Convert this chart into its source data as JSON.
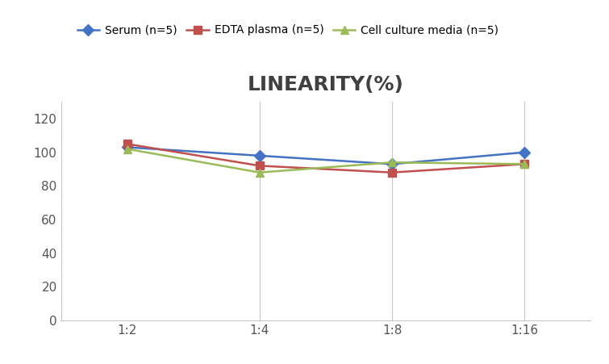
{
  "title": "LINEARITY(%)",
  "title_color": "#404040",
  "x_labels": [
    "1:2",
    "1:4",
    "1:8",
    "1:16"
  ],
  "series": [
    {
      "label": "Serum (n=5)",
      "values": [
        103,
        98,
        93,
        100
      ],
      "color": "#4472C4",
      "marker": "D"
    },
    {
      "label": "EDTA plasma (n=5)",
      "values": [
        105,
        92,
        88,
        93
      ],
      "color": "#C0504D",
      "marker": "s"
    },
    {
      "label": "Cell culture media (n=5)",
      "values": [
        102,
        88,
        94,
        93
      ],
      "color": "#9BBB59",
      "marker": "^"
    }
  ],
  "ylim": [
    0,
    130
  ],
  "yticks": [
    0,
    20,
    40,
    60,
    80,
    100,
    120
  ],
  "title_fontsize": 18,
  "legend_fontsize": 10,
  "tick_fontsize": 11,
  "background_color": "#ffffff",
  "grid_color": "#c8c8c8",
  "spine_color": "#c8c8c8"
}
